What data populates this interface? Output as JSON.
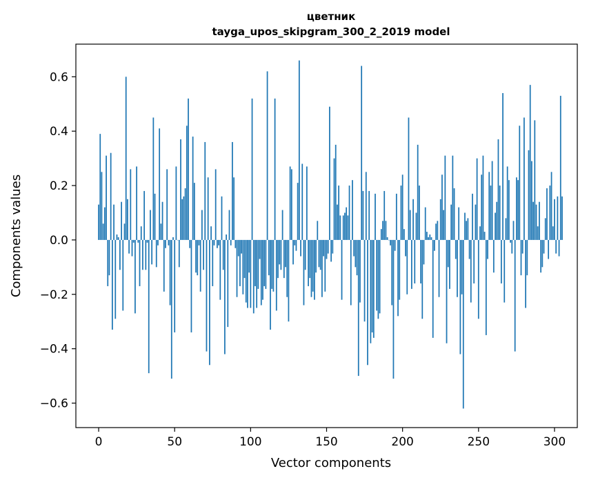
{
  "chart_data": {
    "type": "bar",
    "title_line1": "цветник",
    "title_line2": "tayga_upos_skipgram_300_2_2019 model",
    "xlabel": "Vector components",
    "ylabel": "Components values",
    "xlim": [
      -15,
      315
    ],
    "ylim": [
      -0.69,
      0.72
    ],
    "xticks": [
      0,
      50,
      100,
      150,
      200,
      250,
      300
    ],
    "xtick_labels": [
      "0",
      "50",
      "100",
      "150",
      "200",
      "250",
      "300"
    ],
    "yticks": [
      -0.6,
      -0.4,
      -0.2,
      0.0,
      0.2,
      0.4,
      0.6
    ],
    "ytick_labels": [
      "−0.6",
      "−0.4",
      "−0.2",
      "0.0",
      "0.2",
      "0.4",
      "0.6"
    ],
    "grid": false,
    "bar_color": "#1f77b4",
    "values": [
      0.13,
      0.39,
      0.25,
      0.06,
      0.12,
      0.31,
      -0.17,
      -0.13,
      0.32,
      -0.33,
      0.13,
      -0.29,
      0.02,
      0.01,
      -0.11,
      0.14,
      -0.26,
      0.06,
      0.6,
      0.15,
      -0.05,
      0.26,
      -0.06,
      -0.01,
      -0.27,
      0.27,
      -0.01,
      -0.17,
      0.05,
      -0.11,
      0.18,
      -0.11,
      -0.01,
      -0.49,
      0.11,
      -0.09,
      0.45,
      0.17,
      -0.1,
      -0.02,
      0.41,
      0.06,
      0.14,
      -0.19,
      -0.03,
      0.26,
      -0.02,
      -0.24,
      -0.51,
      0.01,
      -0.34,
      0.27,
      0.0,
      -0.1,
      0.37,
      0.15,
      0.16,
      0.19,
      0.42,
      0.52,
      -0.03,
      -0.34,
      0.38,
      0.21,
      -0.12,
      -0.13,
      -0.02,
      -0.19,
      0.11,
      -0.11,
      0.36,
      -0.41,
      0.23,
      -0.46,
      0.05,
      -0.17,
      -0.02,
      0.26,
      -0.03,
      -0.02,
      -0.22,
      0.16,
      -0.11,
      -0.42,
      0.02,
      -0.32,
      0.11,
      -0.02,
      0.36,
      0.23,
      -0.03,
      -0.21,
      -0.06,
      -0.17,
      -0.05,
      -0.2,
      -0.14,
      -0.23,
      -0.25,
      -0.12,
      -0.25,
      0.52,
      -0.27,
      -0.17,
      -0.25,
      -0.18,
      -0.07,
      -0.24,
      -0.22,
      -0.17,
      -0.18,
      0.62,
      -0.13,
      -0.33,
      -0.18,
      -0.19,
      0.52,
      -0.26,
      -0.14,
      -0.09,
      -0.11,
      0.11,
      -0.14,
      -0.1,
      -0.21,
      -0.3,
      0.27,
      0.26,
      -0.09,
      -0.02,
      -0.04,
      0.21,
      0.66,
      -0.06,
      0.28,
      -0.24,
      -0.11,
      0.27,
      -0.17,
      -0.14,
      -0.21,
      -0.19,
      -0.22,
      -0.12,
      0.07,
      -0.1,
      -0.11,
      -0.21,
      -0.06,
      -0.19,
      -0.07,
      -0.05,
      0.49,
      -0.08,
      -0.05,
      0.3,
      0.35,
      0.13,
      0.2,
      0.09,
      -0.22,
      0.09,
      0.1,
      0.12,
      0.09,
      0.2,
      -0.24,
      0.22,
      -0.06,
      -0.1,
      -0.13,
      -0.5,
      -0.23,
      0.64,
      0.18,
      -0.3,
      0.25,
      -0.46,
      0.18,
      -0.38,
      -0.34,
      -0.36,
      0.17,
      -0.26,
      -0.29,
      -0.27,
      0.04,
      0.07,
      0.18,
      0.07,
      0.01,
      0.0,
      -0.02,
      -0.24,
      -0.51,
      -0.04,
      0.17,
      -0.28,
      -0.22,
      0.2,
      0.24,
      0.04,
      -0.06,
      -0.2,
      0.45,
      0.11,
      -0.18,
      0.15,
      -0.16,
      0.1,
      0.35,
      0.2,
      -0.16,
      -0.29,
      -0.09,
      0.12,
      0.03,
      0.01,
      0.02,
      0.01,
      -0.36,
      -0.04,
      0.06,
      0.07,
      -0.21,
      0.15,
      0.24,
      0.11,
      0.31,
      -0.38,
      -0.1,
      -0.18,
      0.13,
      0.31,
      0.19,
      -0.07,
      -0.21,
      0.12,
      -0.42,
      -0.2,
      -0.62,
      0.1,
      0.07,
      0.08,
      -0.07,
      -0.23,
      0.17,
      -0.16,
      0.13,
      0.3,
      -0.29,
      0.05,
      0.24,
      0.31,
      0.03,
      -0.35,
      -0.07,
      0.25,
      0.2,
      0.29,
      -0.12,
      0.1,
      0.14,
      0.37,
      0.2,
      -0.16,
      0.54,
      -0.23,
      0.08,
      0.27,
      0.22,
      -0.01,
      -0.05,
      0.07,
      -0.41,
      0.23,
      0.22,
      0.42,
      -0.13,
      -0.05,
      0.45,
      -0.25,
      -0.13,
      0.33,
      0.57,
      0.29,
      0.14,
      0.44,
      0.13,
      0.05,
      0.14,
      -0.12,
      -0.1,
      -0.05,
      0.08,
      0.19,
      -0.07,
      0.2,
      0.25,
      0.05,
      0.15,
      -0.05,
      0.16,
      -0.06,
      0.53,
      0.16
    ]
  }
}
